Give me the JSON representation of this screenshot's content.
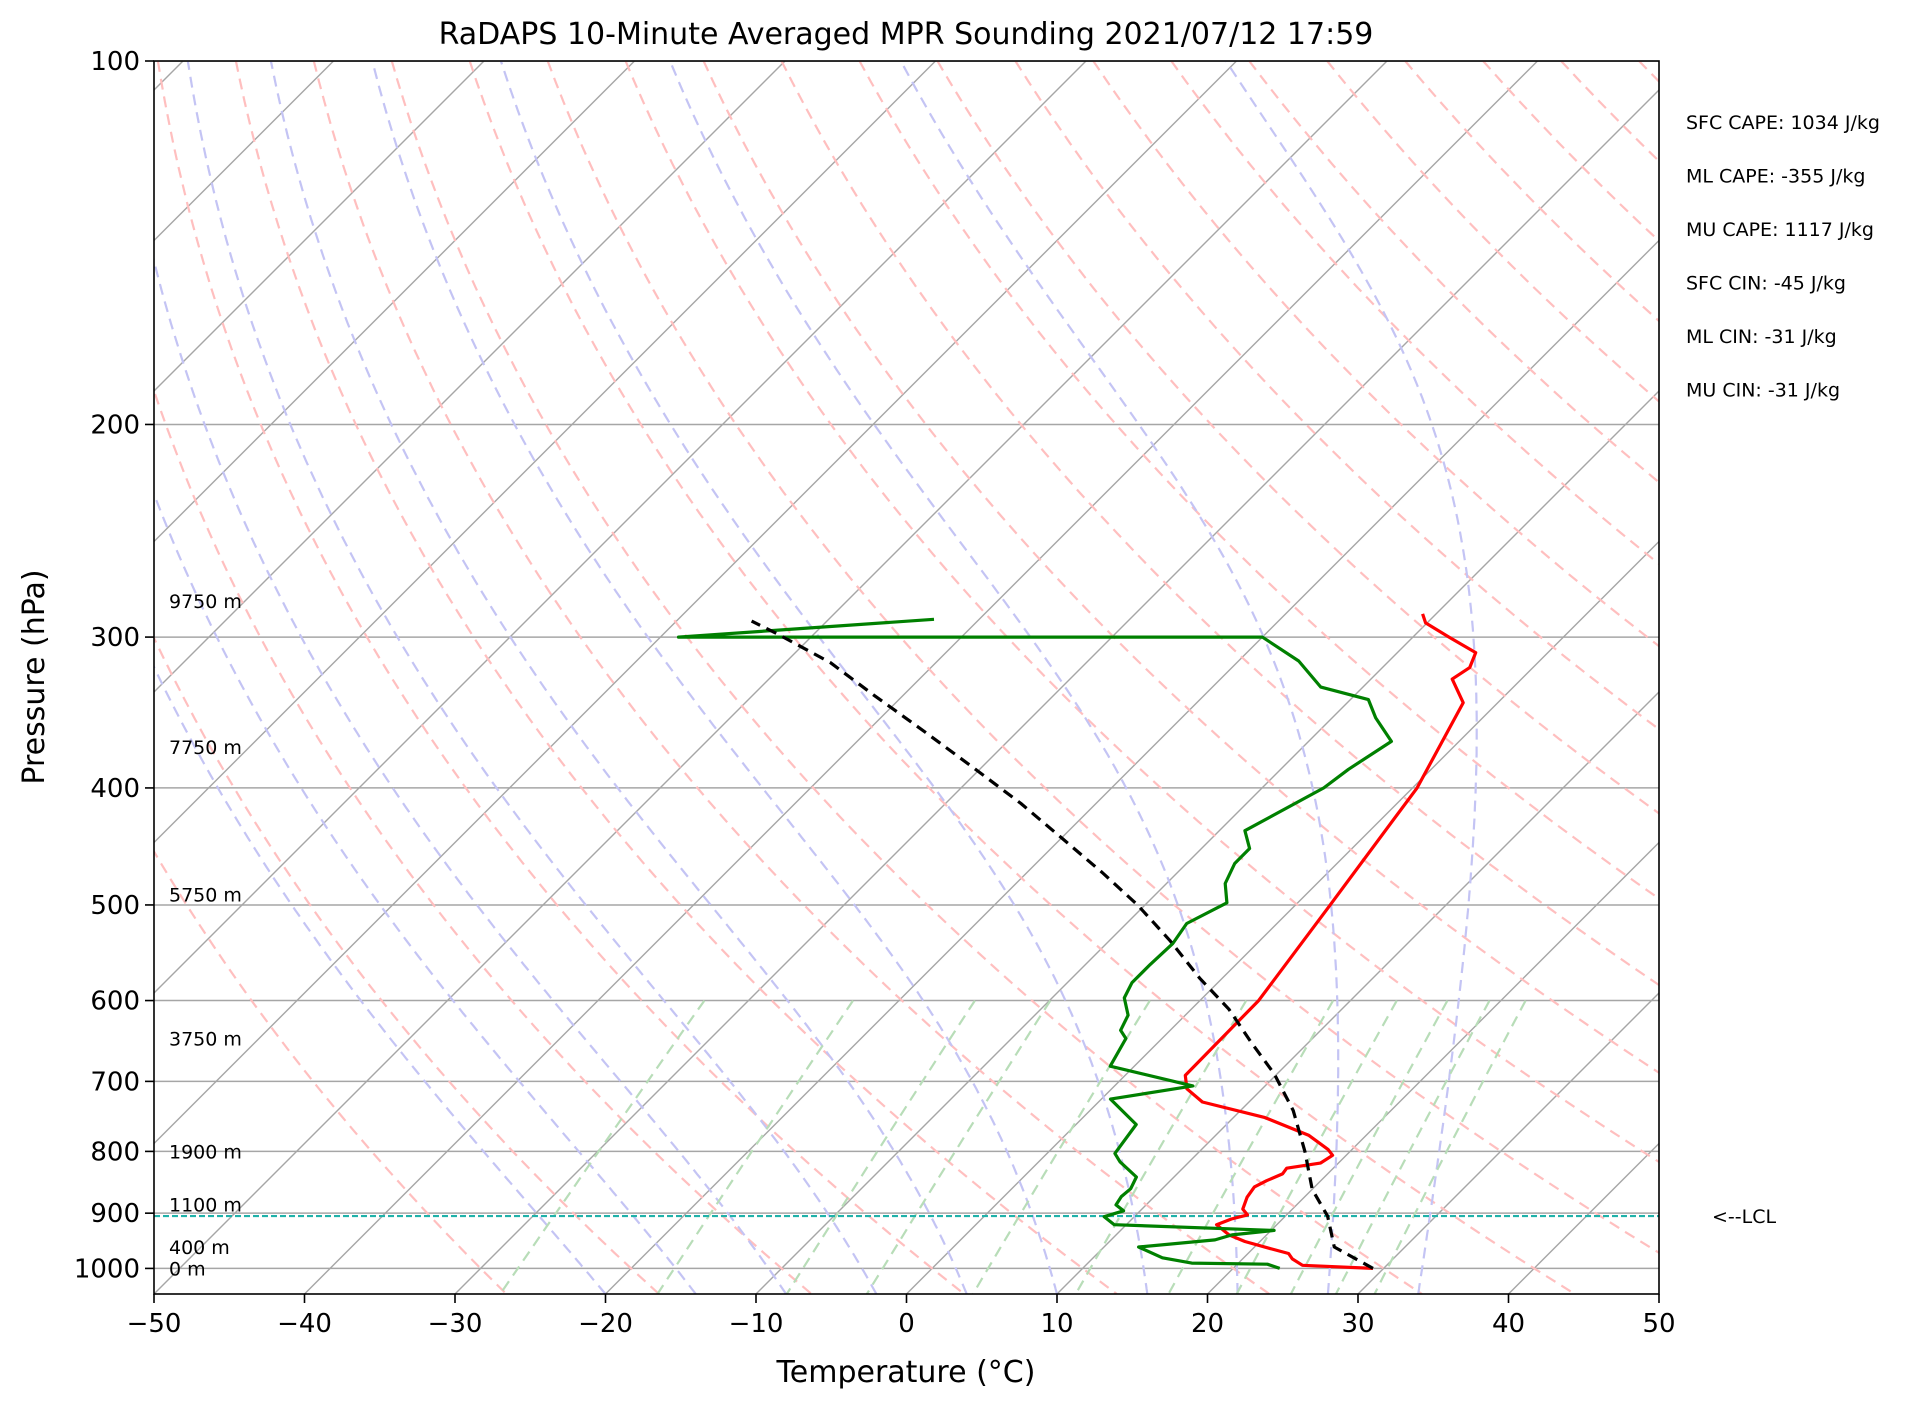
{
  "chart_data": {
    "type": "line",
    "chart_kind": "skew-T log-P",
    "title": "RaDAPS 10-Minute Averaged MPR Sounding 2021/07/12 17:59",
    "xlabel": "Temperature (°C)",
    "ylabel": "Pressure (hPa)",
    "xlim": [
      -50,
      50
    ],
    "ylim": [
      1050,
      100
    ],
    "y_scale": "log",
    "skew": "isotherms slanted right with height",
    "x_ticks": [
      "−50",
      "−40",
      "−30",
      "−20",
      "−10",
      "0",
      "10",
      "20",
      "30",
      "40",
      "50"
    ],
    "x_tick_values": [
      -50,
      -40,
      -30,
      -20,
      -10,
      0,
      10,
      20,
      30,
      40,
      50
    ],
    "y_ticks": [
      "100",
      "200",
      "300",
      "400",
      "500",
      "600",
      "700",
      "800",
      "900",
      "1000"
    ],
    "y_tick_values": [
      100,
      200,
      300,
      400,
      500,
      600,
      700,
      800,
      900,
      1000
    ],
    "grid": true,
    "height_labels": [
      {
        "text": "9750 m",
        "p": 280
      },
      {
        "text": "7750 m",
        "p": 370
      },
      {
        "text": "5750 m",
        "p": 490
      },
      {
        "text": "3750 m",
        "p": 645
      },
      {
        "text": "1900 m",
        "p": 800
      },
      {
        "text": "1100 m",
        "p": 885
      },
      {
        "text": "400 m",
        "p": 960
      },
      {
        "text": "0 m",
        "p": 1000
      }
    ],
    "series": [
      {
        "role": "temperature",
        "color": "#ff0000",
        "points": [
          [
            29.3,
            1000
          ],
          [
            24.4,
            994
          ],
          [
            23.3,
            982
          ],
          [
            22.7,
            972
          ],
          [
            21.0,
            962
          ],
          [
            19.0,
            950
          ],
          [
            17.5,
            938
          ],
          [
            16.0,
            920
          ],
          [
            16.6,
            910
          ],
          [
            17.4,
            903
          ],
          [
            16.7,
            893
          ],
          [
            16.2,
            873
          ],
          [
            16.0,
            856
          ],
          [
            16.4,
            846
          ],
          [
            17.0,
            835
          ],
          [
            16.9,
            826
          ],
          [
            18.8,
            818
          ],
          [
            19.1,
            806
          ],
          [
            18.4,
            797
          ],
          [
            16.2,
            776
          ],
          [
            12.1,
            750
          ],
          [
            6.9,
            728
          ],
          [
            5.0,
            710
          ],
          [
            4.0,
            692
          ],
          [
            3.9,
            600
          ],
          [
            2.3,
            500
          ],
          [
            0.3,
            400
          ],
          [
            -2.3,
            340
          ],
          [
            -4.6,
            325
          ],
          [
            -4.2,
            318
          ],
          [
            -4.8,
            309
          ],
          [
            -7.6,
            300
          ],
          [
            -10.1,
            292
          ],
          [
            -10.9,
            287
          ]
        ]
      },
      {
        "role": "dewpoint",
        "color": "#008000",
        "points": [
          [
            23.1,
            1000
          ],
          [
            22.0,
            992
          ],
          [
            16.9,
            990
          ],
          [
            14.6,
            980
          ],
          [
            12.3,
            960
          ],
          [
            16.9,
            947
          ],
          [
            17.7,
            938
          ],
          [
            20.2,
            930
          ],
          [
            9.2,
            920
          ],
          [
            8.0,
            906
          ],
          [
            8.9,
            896
          ],
          [
            8.0,
            886
          ],
          [
            7.8,
            872
          ],
          [
            7.9,
            859
          ],
          [
            7.5,
            840
          ],
          [
            5.4,
            816
          ],
          [
            4.5,
            803
          ],
          [
            4.0,
            760
          ],
          [
            0.6,
            724
          ],
          [
            5.2,
            706
          ],
          [
            -1.6,
            680
          ],
          [
            -2.4,
            645
          ],
          [
            -3.3,
            635
          ],
          [
            -3.8,
            617
          ],
          [
            -5.2,
            597
          ],
          [
            -5.7,
            580
          ],
          [
            -5.7,
            560
          ],
          [
            -5.6,
            538
          ],
          [
            -6.0,
            518
          ],
          [
            -4.7,
            498
          ],
          [
            -6.1,
            480
          ],
          [
            -6.8,
            462
          ],
          [
            -6.8,
            449
          ],
          [
            -8.3,
            434
          ],
          [
            -5.9,
            400
          ],
          [
            -5.5,
            386
          ],
          [
            -4.5,
            366
          ],
          [
            -7.1,
            350
          ],
          [
            -8.8,
            338
          ],
          [
            -12.8,
            330
          ],
          [
            -16.0,
            314
          ],
          [
            -20.0,
            300
          ],
          [
            -58.8,
            300
          ],
          [
            -43.0,
            290
          ]
        ]
      },
      {
        "role": "parcel path",
        "color": "#000000",
        "style": "dashed",
        "points": [
          [
            29.3,
            1000
          ],
          [
            25.3,
            960
          ],
          [
            22.8,
            905
          ],
          [
            20.0,
            860
          ],
          [
            17.0,
            800
          ],
          [
            13.5,
            740
          ],
          [
            9.8,
            690
          ],
          [
            6.2,
            650
          ],
          [
            2.5,
            610
          ],
          [
            -1.5,
            575
          ],
          [
            -6.0,
            535
          ],
          [
            -10.5,
            500
          ],
          [
            -15.0,
            470
          ],
          [
            -20.0,
            440
          ],
          [
            -25.0,
            412
          ],
          [
            -30.5,
            385
          ],
          [
            -36.0,
            360
          ],
          [
            -42.0,
            335
          ],
          [
            -47.0,
            315
          ],
          [
            -52.5,
            298
          ],
          [
            -55.0,
            291
          ]
        ]
      }
    ],
    "lcl_pressure": 905,
    "lcl_label": "<--LCL",
    "stats": [
      "SFC CAPE: 1034 J/kg",
      "ML CAPE: -355 J/kg",
      "MU CAPE: 1117 J/kg",
      "SFC CIN: -45 J/kg",
      "ML CIN: -31 J/kg",
      "MU CIN: -31 J/kg"
    ],
    "colors": {
      "isotherm": "#a6a6a6",
      "isobar": "#a6a6a6",
      "dry_adiabat": "#ffbfbf",
      "moist_adiabat": "#c4c4f4",
      "mixing_ratio": "#b8ddb8",
      "lcl_line": "#20b2aa"
    }
  }
}
